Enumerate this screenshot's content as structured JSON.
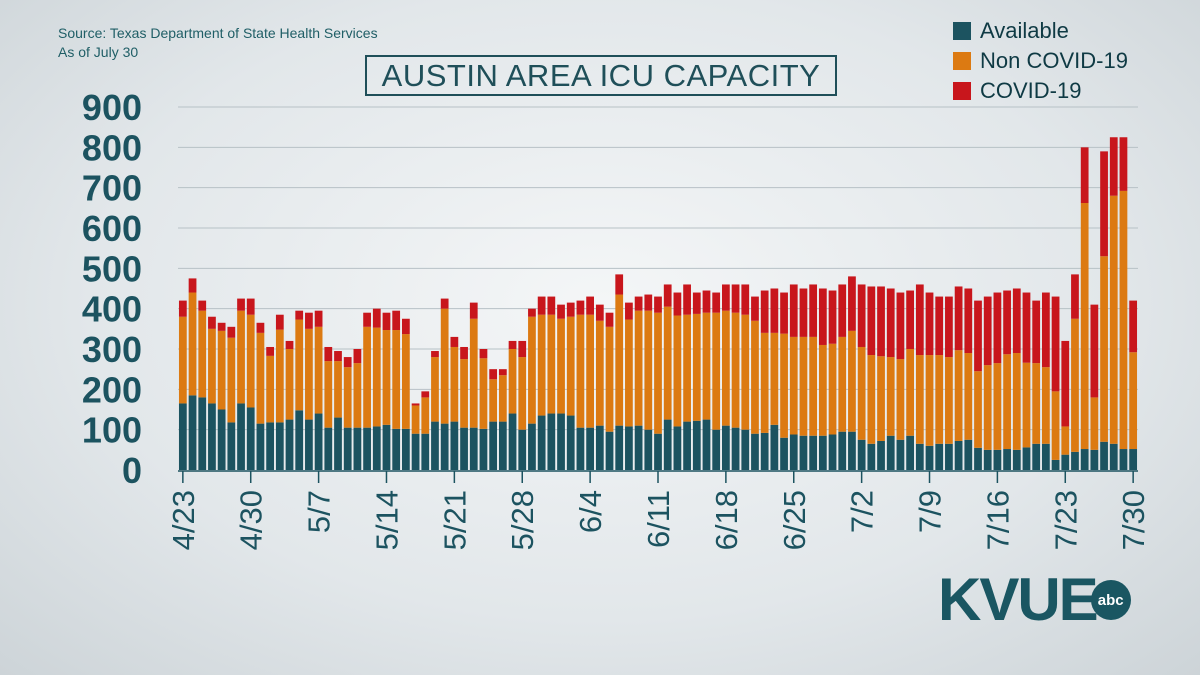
{
  "source_line1": "Source: Texas Department of State Health Services",
  "source_line2": "As of July 30",
  "logo_text": "KVUE",
  "logo_badge": "abc",
  "chart_data": {
    "type": "bar",
    "stacked": true,
    "title": "AUSTIN AREA ICU CAPACITY",
    "xlabel": "",
    "ylabel": "",
    "ylim": [
      0,
      900
    ],
    "yticks": [
      0,
      100,
      200,
      300,
      400,
      500,
      600,
      700,
      800,
      900
    ],
    "grid": true,
    "legend_position": "top-right",
    "colors": {
      "Available": "#1c5360",
      "Non COVID-19": "#dc7a12",
      "COVID-19": "#c8161c"
    },
    "x_tick_labels": [
      {
        "index": 0,
        "label": "4/23"
      },
      {
        "index": 7,
        "label": "4/30"
      },
      {
        "index": 14,
        "label": "5/7"
      },
      {
        "index": 21,
        "label": "5/14"
      },
      {
        "index": 28,
        "label": "5/21"
      },
      {
        "index": 35,
        "label": "5/28"
      },
      {
        "index": 42,
        "label": "6/4"
      },
      {
        "index": 49,
        "label": "6/11"
      },
      {
        "index": 56,
        "label": "6/18"
      },
      {
        "index": 63,
        "label": "6/25"
      },
      {
        "index": 70,
        "label": "7/2"
      },
      {
        "index": 77,
        "label": "7/9"
      },
      {
        "index": 84,
        "label": "7/16"
      },
      {
        "index": 91,
        "label": "7/23"
      },
      {
        "index": 98,
        "label": "7/30"
      }
    ],
    "series": [
      {
        "name": "Available",
        "values": [
          165,
          185,
          180,
          165,
          150,
          118,
          165,
          155,
          115,
          118,
          118,
          125,
          148,
          125,
          140,
          105,
          130,
          105,
          105,
          105,
          108,
          112,
          102,
          102,
          90,
          90,
          120,
          115,
          120,
          105,
          105,
          102,
          120,
          120,
          140,
          100,
          115,
          135,
          140,
          140,
          135,
          105,
          105,
          110,
          95,
          110,
          108,
          110,
          100,
          90,
          125,
          108,
          120,
          122,
          125,
          100,
          110,
          105,
          100,
          90,
          92,
          112,
          80,
          88,
          85,
          85,
          85,
          88,
          95,
          95,
          75,
          65,
          72,
          85,
          75,
          85,
          65,
          60,
          65,
          65,
          72,
          75,
          55,
          50,
          50,
          52,
          50,
          56,
          65,
          65,
          25,
          38,
          45,
          52,
          50,
          70,
          65,
          52,
          52
        ],
        "total_values": [
          420,
          475,
          420,
          380,
          365,
          355,
          425,
          425,
          365,
          305,
          385,
          320,
          395,
          390,
          395,
          305,
          295,
          280,
          300,
          390,
          400,
          390,
          395,
          375,
          165,
          195,
          295,
          425,
          330,
          305,
          415,
          300,
          230,
          250,
          300,
          320,
          400,
          430,
          430,
          410,
          415,
          420,
          430,
          410,
          390,
          485,
          415,
          430,
          435,
          430,
          460,
          440,
          460,
          440,
          445,
          440,
          460,
          460,
          460,
          430,
          445,
          450,
          440,
          460,
          450,
          460,
          450,
          445,
          460,
          480,
          460,
          455,
          455,
          450,
          440,
          445,
          460,
          440,
          430,
          430,
          455,
          450,
          420,
          430,
          440,
          445,
          450,
          440,
          420,
          440,
          430,
          320,
          485,
          800,
          410,
          790,
          825,
          825,
          420
        ]
      },
      {
        "name": "Non COVID-19",
        "values": [
          215,
          255,
          215,
          185,
          195,
          210,
          230,
          230,
          225,
          165,
          230,
          175,
          225,
          225,
          215,
          165,
          140,
          150,
          160,
          250,
          245,
          235,
          245,
          235,
          70,
          90,
          160,
          285,
          185,
          170,
          270,
          175,
          105,
          115,
          160,
          180,
          265,
          250,
          245,
          235,
          245,
          280,
          280,
          260,
          260,
          325,
          265,
          285,
          295,
          300,
          280,
          275,
          265,
          265,
          265,
          290,
          285,
          285,
          285,
          280,
          248,
          228,
          258,
          242,
          245,
          245,
          225,
          225,
          235,
          250,
          230,
          220,
          210,
          195,
          200,
          215,
          220,
          225,
          220,
          215,
          225,
          215,
          190,
          210,
          215,
          235,
          240,
          210,
          200,
          190,
          170,
          70,
          330,
          610,
          130,
          460,
          615,
          640,
          240
        ]
      },
      {
        "name": "COVID-19",
        "values": [
          40,
          35,
          25,
          30,
          20,
          27,
          30,
          40,
          25,
          22,
          37,
          20,
          22,
          40,
          40,
          35,
          25,
          25,
          35,
          35,
          47,
          43,
          48,
          38,
          5,
          15,
          15,
          25,
          25,
          30,
          40,
          23,
          25,
          15,
          20,
          40,
          20,
          45,
          45,
          35,
          35,
          35,
          45,
          40,
          35,
          50,
          42,
          35,
          40,
          40,
          55,
          57,
          75,
          53,
          55,
          50,
          65,
          70,
          75,
          60,
          105,
          110,
          102,
          130,
          120,
          130,
          140,
          132,
          130,
          135,
          155,
          170,
          173,
          170,
          165,
          145,
          175,
          155,
          145,
          150,
          158,
          160,
          175,
          170,
          175,
          158,
          160,
          174,
          155,
          185,
          235,
          212,
          110,
          138,
          230,
          260,
          145,
          133,
          128
        ]
      }
    ]
  }
}
